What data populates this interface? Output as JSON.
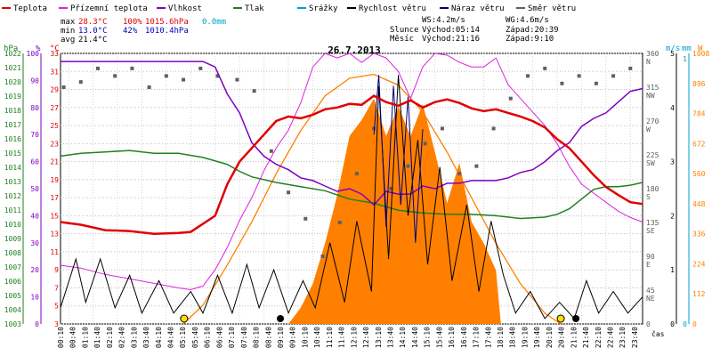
{
  "legend": [
    {
      "label": "Teplota",
      "color": "#e00000"
    },
    {
      "label": "Přízemní teplota",
      "color": "#e020e0"
    },
    {
      "label": "Vlhkost",
      "color": "#8000c0"
    },
    {
      "label": "Tlak",
      "color": "#208020"
    },
    {
      "label": "Srážky",
      "color": "#00a0d0"
    },
    {
      "label": "Rychlost větru",
      "color": "#000000"
    },
    {
      "label": "Náraz větru",
      "color": "#000080"
    },
    {
      "label": "Směr větru",
      "color": "#606060"
    }
  ],
  "stats": {
    "max_label": "max",
    "max_temp": "28.3°C",
    "max_hum": "100%",
    "max_press": "1015.6hPa",
    "max_rain": "0.0mm",
    "min_label": "min",
    "min_temp": "13.0°C",
    "min_hum": "42%",
    "min_press": "1010.4hPa",
    "avg_label": "avg",
    "avg_temp": "21.4°C"
  },
  "info": {
    "ws": "WS:4.2m/s",
    "wg": "WG:4.6m/s",
    "sun_label": "Slunce",
    "sun_rise": "Východ:05:14",
    "sun_set": "Západ:20:39",
    "moon_label": "Měsíc",
    "moon_rise": "Východ:21:16",
    "moon_set": "Západ:9:10"
  },
  "title": "26.7.2013",
  "axes": {
    "hpa_label": "hPa",
    "pct_label": "%",
    "c_label": "°C",
    "ms_label": "m/s",
    "mm_label": "mm",
    "w_label": "W",
    "hpa_ticks": [
      "1003",
      "1004",
      "1005",
      "1006",
      "1007",
      "1008",
      "1009",
      "1010",
      "1011",
      "1012",
      "1013",
      "1014",
      "1015",
      "1016",
      "1017",
      "1018",
      "1019",
      "1020",
      "1021",
      "1022"
    ],
    "pct_ticks": [
      "0",
      "10",
      "20",
      "30",
      "40",
      "50",
      "60",
      "70",
      "80",
      "90",
      "100"
    ],
    "c_ticks": [
      "3",
      "5",
      "7",
      "9",
      "11",
      "13",
      "15",
      "17",
      "19",
      "21",
      "23",
      "25",
      "27",
      "29",
      "31",
      "33"
    ],
    "dir_ticks": [
      "0",
      "45 NE",
      "90 E",
      "135 SE",
      "180 S",
      "225 SW",
      "270 W",
      "315 NW",
      "360 N"
    ],
    "ms_ticks": [
      "0",
      "1",
      "2",
      "3",
      "4",
      "5"
    ],
    "mm_ticks": [
      "0",
      "1"
    ],
    "w_ticks": [
      "0",
      "112",
      "224",
      "336",
      "448",
      "560",
      "672",
      "784",
      "896",
      "1008"
    ],
    "time_label": "čas",
    "time_ticks": [
      "00:10",
      "00:40",
      "01:10",
      "01:40",
      "02:10",
      "02:40",
      "03:10",
      "03:40",
      "04:10",
      "04:40",
      "05:10",
      "05:40",
      "06:10",
      "06:40",
      "07:10",
      "07:40",
      "08:10",
      "08:40",
      "09:10",
      "09:40",
      "10:10",
      "10:40",
      "11:10",
      "11:40",
      "12:10",
      "12:40",
      "13:10",
      "13:40",
      "14:10",
      "14:40",
      "15:10",
      "15:40",
      "16:10",
      "16:40",
      "17:10",
      "17:40",
      "18:10",
      "18:40",
      "19:10",
      "19:40",
      "20:10",
      "20:40",
      "21:10",
      "21:40",
      "22:10",
      "22:40",
      "23:10",
      "23:40"
    ]
  },
  "chart_data": {
    "type": "line",
    "title": "26.7.2013",
    "x_unit": "hour",
    "xlim": [
      0.17,
      24.0
    ],
    "temp_c": {
      "ylim": [
        3,
        33
      ],
      "points": [
        [
          0.17,
          14.3
        ],
        [
          1,
          14.0
        ],
        [
          2,
          13.4
        ],
        [
          3,
          13.3
        ],
        [
          4,
          13.0
        ],
        [
          5,
          13.1
        ],
        [
          5.5,
          13.2
        ],
        [
          6.5,
          15.0
        ],
        [
          7,
          18.5
        ],
        [
          7.5,
          21.0
        ],
        [
          8,
          22.5
        ],
        [
          8.5,
          24.0
        ],
        [
          9,
          25.5
        ],
        [
          9.5,
          26.0
        ],
        [
          10,
          25.8
        ],
        [
          10.5,
          26.2
        ],
        [
          11,
          26.8
        ],
        [
          11.5,
          27.0
        ],
        [
          12,
          27.4
        ],
        [
          12.5,
          27.3
        ],
        [
          13,
          28.3
        ],
        [
          13.5,
          27.6
        ],
        [
          14,
          27.2
        ],
        [
          14.5,
          27.8
        ],
        [
          15,
          27.0
        ],
        [
          15.5,
          27.6
        ],
        [
          16,
          27.9
        ],
        [
          16.5,
          27.5
        ],
        [
          17,
          26.9
        ],
        [
          17.5,
          26.6
        ],
        [
          18,
          26.8
        ],
        [
          18.5,
          26.4
        ],
        [
          19,
          26.0
        ],
        [
          19.5,
          25.5
        ],
        [
          20,
          24.8
        ],
        [
          20.5,
          23.5
        ],
        [
          21,
          22.5
        ],
        [
          21.5,
          21.0
        ],
        [
          22,
          19.5
        ],
        [
          22.5,
          18.2
        ],
        [
          23,
          17.3
        ],
        [
          23.5,
          16.5
        ],
        [
          24,
          16.3
        ]
      ]
    },
    "ground_temp_c": {
      "ylim": [
        3,
        33
      ],
      "points": [
        [
          0.17,
          9.5
        ],
        [
          1,
          9.2
        ],
        [
          2,
          8.5
        ],
        [
          3,
          8.0
        ],
        [
          4,
          7.5
        ],
        [
          5,
          7.0
        ],
        [
          5.5,
          6.8
        ],
        [
          6,
          7.2
        ],
        [
          6.5,
          9.0
        ],
        [
          7,
          11.5
        ],
        [
          7.5,
          14.5
        ],
        [
          8,
          17.0
        ],
        [
          8.5,
          20.0
        ],
        [
          9,
          22.5
        ],
        [
          9.5,
          24.5
        ],
        [
          10,
          27.5
        ],
        [
          10.5,
          31.5
        ],
        [
          11,
          33.0
        ],
        [
          11.5,
          32.5
        ],
        [
          12,
          33.0
        ],
        [
          12.5,
          32.0
        ],
        [
          13,
          33.0
        ],
        [
          13.5,
          32.5
        ],
        [
          14,
          31.0
        ],
        [
          14.5,
          28.0
        ],
        [
          15,
          31.5
        ],
        [
          15.5,
          33.0
        ],
        [
          16,
          32.8
        ],
        [
          16.5,
          32.0
        ],
        [
          17,
          31.5
        ],
        [
          17.5,
          31.5
        ],
        [
          18,
          32.5
        ],
        [
          18.5,
          29.5
        ],
        [
          19,
          28.0
        ],
        [
          19.5,
          26.5
        ],
        [
          20,
          25.0
        ],
        [
          20.5,
          23.0
        ],
        [
          21,
          20.5
        ],
        [
          21.5,
          18.5
        ],
        [
          22,
          17.5
        ],
        [
          22.5,
          16.5
        ],
        [
          23,
          15.5
        ],
        [
          23.5,
          14.8
        ],
        [
          24,
          14.3
        ]
      ]
    },
    "humidity_pct": {
      "ylim": [
        0,
        100
      ],
      "points": [
        [
          0.17,
          97
        ],
        [
          1,
          97
        ],
        [
          2,
          97
        ],
        [
          3,
          97
        ],
        [
          4,
          97
        ],
        [
          5,
          97
        ],
        [
          6,
          97
        ],
        [
          6.5,
          95
        ],
        [
          7,
          85
        ],
        [
          7.5,
          78
        ],
        [
          8,
          67
        ],
        [
          8.5,
          62
        ],
        [
          9,
          59
        ],
        [
          9.5,
          57
        ],
        [
          10,
          54
        ],
        [
          10.5,
          53
        ],
        [
          11,
          51
        ],
        [
          11.5,
          49
        ],
        [
          12,
          50
        ],
        [
          12.5,
          48
        ],
        [
          13,
          44
        ],
        [
          13.5,
          49
        ],
        [
          14,
          48
        ],
        [
          14.5,
          48
        ],
        [
          15,
          51
        ],
        [
          15.5,
          50
        ],
        [
          16,
          52
        ],
        [
          16.5,
          52
        ],
        [
          17,
          53
        ],
        [
          17.5,
          53
        ],
        [
          18,
          53
        ],
        [
          18.5,
          54
        ],
        [
          19,
          56
        ],
        [
          19.5,
          57
        ],
        [
          20,
          60
        ],
        [
          20.5,
          64
        ],
        [
          21,
          67
        ],
        [
          21.5,
          73
        ],
        [
          22,
          76
        ],
        [
          22.5,
          78
        ],
        [
          23,
          82
        ],
        [
          23.5,
          86
        ],
        [
          24,
          87
        ]
      ]
    },
    "pressure_hpa": {
      "ylim": [
        1003,
        1022.5
      ],
      "points": [
        [
          0.17,
          1015.1
        ],
        [
          1,
          1015.3
        ],
        [
          2,
          1015.4
        ],
        [
          3,
          1015.5
        ],
        [
          4,
          1015.3
        ],
        [
          5,
          1015.3
        ],
        [
          6,
          1015.0
        ],
        [
          7,
          1014.5
        ],
        [
          7.5,
          1014.0
        ],
        [
          8,
          1013.6
        ],
        [
          9,
          1013.2
        ],
        [
          10,
          1012.9
        ],
        [
          11,
          1012.6
        ],
        [
          12,
          1012.0
        ],
        [
          13,
          1011.7
        ],
        [
          14,
          1011.2
        ],
        [
          15,
          1011.0
        ],
        [
          16,
          1010.9
        ],
        [
          17,
          1010.9
        ],
        [
          18,
          1010.8
        ],
        [
          19,
          1010.6
        ],
        [
          20,
          1010.7
        ],
        [
          20.5,
          1010.9
        ],
        [
          21,
          1011.3
        ],
        [
          21.5,
          1012.0
        ],
        [
          22,
          1012.7
        ],
        [
          22.5,
          1012.9
        ],
        [
          23,
          1012.9
        ],
        [
          23.5,
          1013.0
        ],
        [
          24,
          1013.2
        ]
      ]
    },
    "solar_w": {
      "ylim": [
        0,
        1008
      ],
      "points": [
        [
          5.2,
          0
        ],
        [
          6,
          70
        ],
        [
          7,
          220
        ],
        [
          8,
          380
        ],
        [
          9,
          560
        ],
        [
          10,
          720
        ],
        [
          11,
          850
        ],
        [
          12,
          915
        ],
        [
          13,
          930
        ],
        [
          14,
          890
        ],
        [
          15,
          790
        ],
        [
          16,
          640
        ],
        [
          17,
          470
        ],
        [
          18,
          300
        ],
        [
          19,
          150
        ],
        [
          20,
          40
        ],
        [
          20.65,
          0
        ]
      ]
    },
    "solar_measured_w": {
      "ylim": [
        0,
        1008
      ],
      "points": [
        [
          9.5,
          0
        ],
        [
          10,
          60
        ],
        [
          10.5,
          150
        ],
        [
          11,
          300
        ],
        [
          11.5,
          480
        ],
        [
          12,
          700
        ],
        [
          12.5,
          760
        ],
        [
          13,
          840
        ],
        [
          13.5,
          700
        ],
        [
          14,
          810
        ],
        [
          14.5,
          700
        ],
        [
          15,
          820
        ],
        [
          15.5,
          640
        ],
        [
          16,
          450
        ],
        [
          16.5,
          600
        ],
        [
          17,
          380
        ],
        [
          17.5,
          300
        ],
        [
          18,
          200
        ],
        [
          18.2,
          0
        ]
      ]
    },
    "wind_speed_ms": {
      "ylim": [
        0,
        5
      ],
      "points": [
        [
          0.17,
          0.3
        ],
        [
          0.8,
          1.2
        ],
        [
          1.2,
          0.4
        ],
        [
          1.8,
          1.2
        ],
        [
          2.4,
          0.3
        ],
        [
          3,
          0.9
        ],
        [
          3.5,
          0.2
        ],
        [
          4.2,
          0.8
        ],
        [
          4.8,
          0.2
        ],
        [
          5.5,
          0.6
        ],
        [
          6,
          0.2
        ],
        [
          6.6,
          0.9
        ],
        [
          7.2,
          0.2
        ],
        [
          7.8,
          1.1
        ],
        [
          8.3,
          0.3
        ],
        [
          8.9,
          1.0
        ],
        [
          9.5,
          0.2
        ],
        [
          10.1,
          0.8
        ],
        [
          10.6,
          0.3
        ],
        [
          11.2,
          1.5
        ],
        [
          11.8,
          0.4
        ],
        [
          12.3,
          1.9
        ],
        [
          12.9,
          0.6
        ],
        [
          13.2,
          4.4
        ],
        [
          13.6,
          1.2
        ],
        [
          14,
          4.6
        ],
        [
          14.4,
          2.0
        ],
        [
          14.8,
          3.4
        ],
        [
          15.2,
          1.1
        ],
        [
          15.7,
          2.9
        ],
        [
          16.2,
          0.8
        ],
        [
          16.8,
          2.2
        ],
        [
          17.3,
          0.6
        ],
        [
          17.8,
          1.9
        ],
        [
          18.3,
          0.9
        ],
        [
          18.8,
          0.2
        ],
        [
          19.4,
          0.6
        ],
        [
          20,
          0.1
        ],
        [
          20.6,
          0.4
        ],
        [
          21.2,
          0.1
        ],
        [
          21.7,
          0.8
        ],
        [
          22.2,
          0.2
        ],
        [
          22.8,
          0.6
        ],
        [
          23.4,
          0.2
        ],
        [
          24,
          0.5
        ]
      ]
    },
    "wind_gust_ms": {
      "ylim": [
        0,
        5
      ],
      "points": [
        [
          13,
          3.5
        ],
        [
          13.2,
          4.6
        ],
        [
          13.5,
          1.8
        ],
        [
          13.8,
          4.4
        ],
        [
          14.1,
          2.2
        ],
        [
          14.4,
          4.2
        ],
        [
          14.7,
          1.5
        ],
        [
          15,
          3.6
        ]
      ]
    },
    "wind_dir_deg": {
      "ylim": [
        0,
        360
      ],
      "points": [
        [
          0.3,
          315
        ],
        [
          1,
          322
        ],
        [
          1.7,
          340
        ],
        [
          2.4,
          330
        ],
        [
          3.1,
          340
        ],
        [
          3.8,
          315
        ],
        [
          4.5,
          330
        ],
        [
          5.2,
          325
        ],
        [
          5.9,
          340
        ],
        [
          6.6,
          330
        ],
        [
          7.4,
          325
        ],
        [
          8.1,
          310
        ],
        [
          8.8,
          230
        ],
        [
          9.5,
          175
        ],
        [
          10.2,
          140
        ],
        [
          10.9,
          90
        ],
        [
          11.6,
          135
        ],
        [
          12.3,
          200
        ],
        [
          13,
          260
        ],
        [
          13.7,
          180
        ],
        [
          14.4,
          210
        ],
        [
          15.1,
          240
        ],
        [
          15.8,
          260
        ],
        [
          16.5,
          200
        ],
        [
          17.2,
          210
        ],
        [
          17.9,
          260
        ],
        [
          18.6,
          300
        ],
        [
          19.3,
          330
        ],
        [
          20,
          340
        ],
        [
          20.7,
          320
        ],
        [
          21.4,
          330
        ],
        [
          22.1,
          320
        ],
        [
          22.8,
          330
        ],
        [
          23.5,
          340
        ]
      ]
    },
    "series_colors": {
      "temp": "#e00000",
      "ground": "#e020e0",
      "humidity": "#8000c0",
      "pressure": "#208020",
      "rain": "#00a0d0",
      "wind": "#000000",
      "gust": "#000080",
      "dir": "#606060",
      "solar": "#ff8000"
    }
  }
}
